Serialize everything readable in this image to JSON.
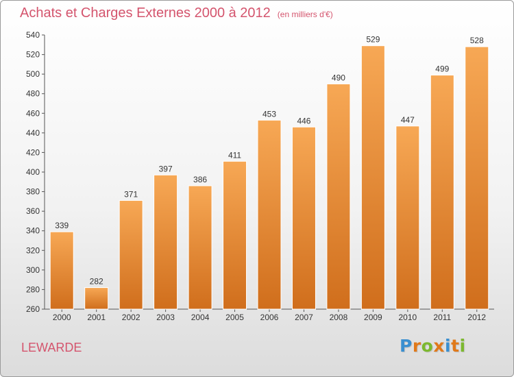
{
  "header": {
    "title": "Achats et Charges Externes 2000 à 2012",
    "subtitle": "(en milliers d'€)"
  },
  "footer": {
    "commune": "LEWARDE",
    "brand": "Proxiti"
  },
  "colors": {
    "accent": "#d4546d",
    "bar_top": "#f7a855",
    "bar_bottom": "#d06e1c",
    "logo_letters": [
      "#3a8fd0",
      "#e0791a",
      "#7cb82f",
      "#e0791a",
      "#3a8fd0",
      "#e0791a",
      "#7cb82f"
    ]
  },
  "chart_data": {
    "type": "bar",
    "title": "Achats et Charges Externes 2000 à 2012",
    "subtitle": "(en milliers d'€)",
    "categories": [
      "2000",
      "2001",
      "2002",
      "2003",
      "2004",
      "2005",
      "2006",
      "2007",
      "2008",
      "2009",
      "2010",
      "2011",
      "2012"
    ],
    "values": [
      339,
      282,
      371,
      397,
      386,
      411,
      453,
      446,
      490,
      529,
      447,
      499,
      528
    ],
    "ylim": [
      260,
      540
    ],
    "ytick_step": 20,
    "grid": false,
    "xlabel": "",
    "ylabel": ""
  }
}
